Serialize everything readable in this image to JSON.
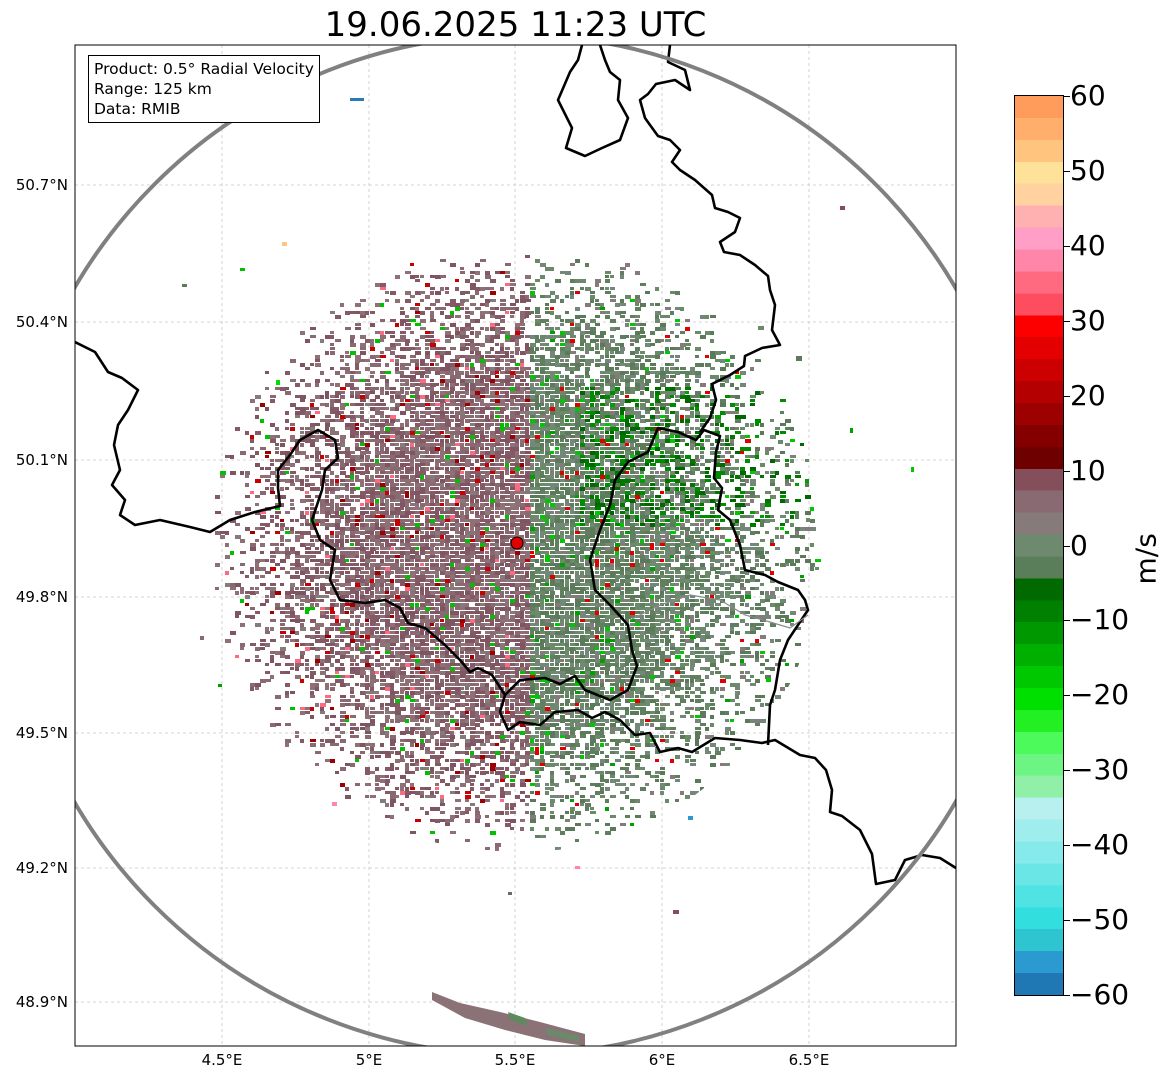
{
  "title": "19.06.2025 11:23 UTC",
  "info": {
    "product": "Product: 0.5° Radial Velocity",
    "range": "Range: 125 km",
    "source": "Data: RMIB"
  },
  "map": {
    "lon_range": [
      4.0,
      7.0
    ],
    "lat_range": [
      48.8,
      50.99
    ],
    "radar_site": {
      "lon": 5.5,
      "lat": 49.915
    },
    "range_ring_color": "#808080",
    "border_color": "#000000",
    "radar_marker_color": "#e00000"
  },
  "axes": {
    "lat_labels": [
      "50.7°N",
      "50.4°N",
      "50.1°N",
      "49.8°N",
      "49.5°N",
      "49.2°N",
      "48.9°N"
    ],
    "lon_labels": [
      "4.5°E",
      "5°E",
      "5.5°E",
      "6°E",
      "6.5°E"
    ]
  },
  "colorbar": {
    "unit": "m/s",
    "range": [
      -60,
      60
    ],
    "ticks": [
      "60",
      "50",
      "40",
      "30",
      "20",
      "10",
      "0",
      "−10",
      "−20",
      "−30",
      "−40",
      "−50",
      "−60"
    ],
    "colors": [
      "#1f78b4",
      "#2a9ad0",
      "#2ec4d0",
      "#33dede",
      "#4fe3e3",
      "#6ae6e6",
      "#86eaea",
      "#a0eded",
      "#b8f0f0",
      "#90f0a8",
      "#6cf582",
      "#4cfa5c",
      "#22f022",
      "#00e000",
      "#00c800",
      "#00b000",
      "#009800",
      "#008000",
      "#006a00",
      "#5a7e5a",
      "#6e8a6e",
      "#867a7a",
      "#8a6a72",
      "#844f5a",
      "#6e0000",
      "#840000",
      "#9c0000",
      "#b40000",
      "#cc0000",
      "#e40000",
      "#fc0000",
      "#ff4d60",
      "#ff6a80",
      "#ff86a8",
      "#ff9ec6",
      "#ffb0b0",
      "#ffd2a0",
      "#ffe29a",
      "#ffc47e",
      "#ffae6c",
      "#ff9c5c"
    ]
  }
}
